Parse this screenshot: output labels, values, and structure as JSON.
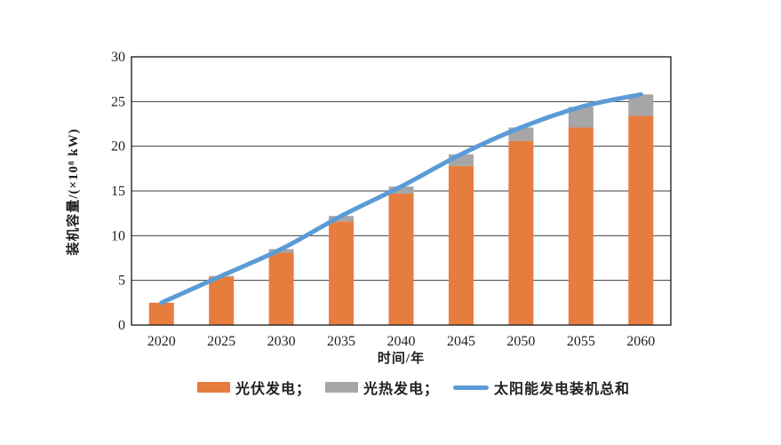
{
  "canvas": {
    "background": "#ffffff"
  },
  "chart_data": {
    "type": "bar",
    "subtype": "stacked-bars-with-total-line",
    "title": "",
    "categories": [
      "2020",
      "2025",
      "2030",
      "2035",
      "2040",
      "2045",
      "2050",
      "2055",
      "2060"
    ],
    "series": [
      {
        "name": "光伏发电",
        "type": "bar",
        "stack": true,
        "color": "#E77C3F",
        "values": [
          2.5,
          5.4,
          8.1,
          11.6,
          14.7,
          17.8,
          20.6,
          22.1,
          23.4
        ]
      },
      {
        "name": "光热发电",
        "type": "bar",
        "stack": true,
        "color": "#A6A6A6",
        "values": [
          0,
          0.1,
          0.4,
          0.6,
          0.8,
          1.3,
          1.5,
          2.3,
          2.4
        ]
      },
      {
        "name": "太阳能发电装机总和",
        "type": "line",
        "color": "#5B9BD5",
        "values": [
          2.5,
          5.5,
          8.5,
          12.2,
          15.5,
          19.1,
          22.1,
          24.4,
          25.8
        ]
      }
    ],
    "xlabel": "时间/年",
    "ylabel": "装机容量/(×10⁸ kW)",
    "ylim": [
      0,
      30
    ],
    "yticks": [
      0,
      5,
      10,
      15,
      20,
      25,
      30
    ],
    "grid": "horizontal",
    "axis_color": "#262626",
    "gridline_color": "#3f3f3f",
    "legend_position": "bottom",
    "legend": [
      {
        "label": "光伏发电；",
        "color": "#E77C3F",
        "marker": "rect"
      },
      {
        "label": "光热发电；",
        "color": "#A6A6A6",
        "marker": "rect"
      },
      {
        "label": "太阳能发电装机总和",
        "color": "#5B9BD5",
        "marker": "line"
      }
    ]
  }
}
